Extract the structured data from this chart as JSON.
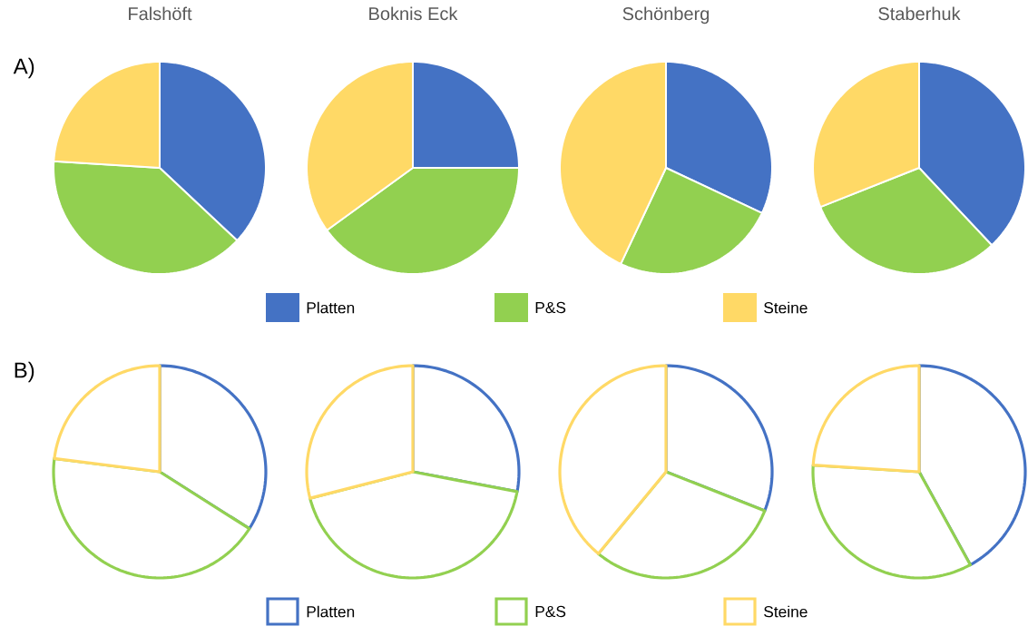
{
  "chart_data": [
    {
      "type": "pie",
      "title": "Falshöft",
      "annotations": [
        "A)"
      ],
      "legend": "bottom",
      "categories": [
        "Platten",
        "P&S",
        "Steine"
      ],
      "values": [
        37,
        39,
        24
      ],
      "colors": [
        "#4472c4",
        "#92d050",
        "#ffd966"
      ]
    },
    {
      "type": "pie",
      "title": "Boknis Eck",
      "categories": [
        null,
        null,
        null
      ],
      "values": [
        25,
        40,
        35
      ],
      "colors": [
        "#4472c4",
        "#92d050",
        "#ffd966"
      ]
    },
    {
      "type": "pie",
      "title": "Schönberg",
      "categories": [
        null,
        null,
        null
      ],
      "values": [
        32,
        25,
        43
      ],
      "colors": [
        "#4472c4",
        "#92d050",
        "#ffd966"
      ]
    },
    {
      "type": "pie",
      "title": "Staberhuk",
      "categories": [
        null,
        null,
        null
      ],
      "values": [
        38,
        31,
        31
      ],
      "colors": [
        "#4472c4",
        "#92d050",
        "#ffd966"
      ]
    },
    {
      "type": "pie",
      "annotations": [
        "B)"
      ],
      "legend": "bottom",
      "categories": [
        "Platten",
        "P&S",
        "Steine"
      ],
      "values": [
        34,
        43,
        23
      ],
      "colors": [
        "#4472c4",
        "#92d050",
        "#ffd966"
      ]
    },
    {
      "type": "pie",
      "categories": [
        null,
        null,
        null
      ],
      "values": [
        28,
        43,
        29
      ],
      "colors": [
        "#4472c4",
        "#92d050",
        "#ffd966"
      ]
    },
    {
      "type": "pie",
      "categories": [
        null,
        null,
        null
      ],
      "values": [
        31,
        30,
        39
      ],
      "colors": [
        "#4472c4",
        "#92d050",
        "#ffd966"
      ]
    },
    {
      "type": "pie",
      "categories": [
        null,
        null,
        null
      ],
      "values": [
        42,
        34,
        24
      ],
      "colors": [
        "#4472c4",
        "#92d050",
        "#ffd966"
      ]
    }
  ]
}
